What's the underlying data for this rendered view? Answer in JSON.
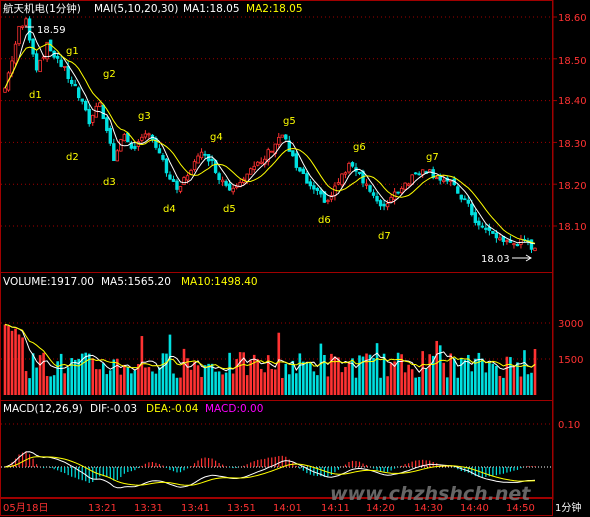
{
  "header": {
    "stock_name": "航天机电(1分钟)",
    "ma_label": "MAI(5,10,20,30)",
    "ma1": "MA1:18.05",
    "ma2": "MA2:18.05"
  },
  "volume_header": {
    "volume": "VOLUME:1917.00",
    "ma5": "MA5:1565.20",
    "ma10": "MA10:1498.40"
  },
  "macd_header": {
    "macd_label": "MACD(12,26,9)",
    "dif": "DIF:-0.03",
    "dea": "DEA:-0.04",
    "macd": "MACD:0.00"
  },
  "colors": {
    "up": "#ff3232",
    "down": "#00e0e0",
    "ma_white": "#ffffff",
    "ma_yellow": "#ffff00",
    "grid": "#a00000",
    "macd_purple": "#ff00ff"
  },
  "watermark": "www.chzhshch.net",
  "chart_data": [
    {
      "type": "candlestick",
      "ylim": [
        18.03,
        18.62
      ],
      "y_ticks": [
        "18.60",
        "18.50",
        "18.40",
        "18.30",
        "18.20",
        "18.10"
      ],
      "high_label": "18.59",
      "low_label": "18.03",
      "annotations": [
        "d1",
        "g1",
        "g2",
        "d2",
        "d3",
        "g3",
        "d4",
        "g4",
        "d5",
        "g5",
        "d6",
        "g6",
        "d7",
        "g7"
      ]
    },
    {
      "type": "bar",
      "y_ticks": [
        "3000",
        "1500"
      ],
      "last_volume": 1917.0
    },
    {
      "type": "bar",
      "y_ticks": [
        "0.10"
      ],
      "dif": -0.03,
      "dea": -0.04,
      "macd": 0.0
    }
  ],
  "x_axis": {
    "labels": [
      "05月18日",
      "13:21",
      "13:31",
      "13:41",
      "13:51",
      "14:01",
      "14:11",
      "14:20",
      "14:30",
      "14:40",
      "14:50",
      "1分钟"
    ]
  }
}
